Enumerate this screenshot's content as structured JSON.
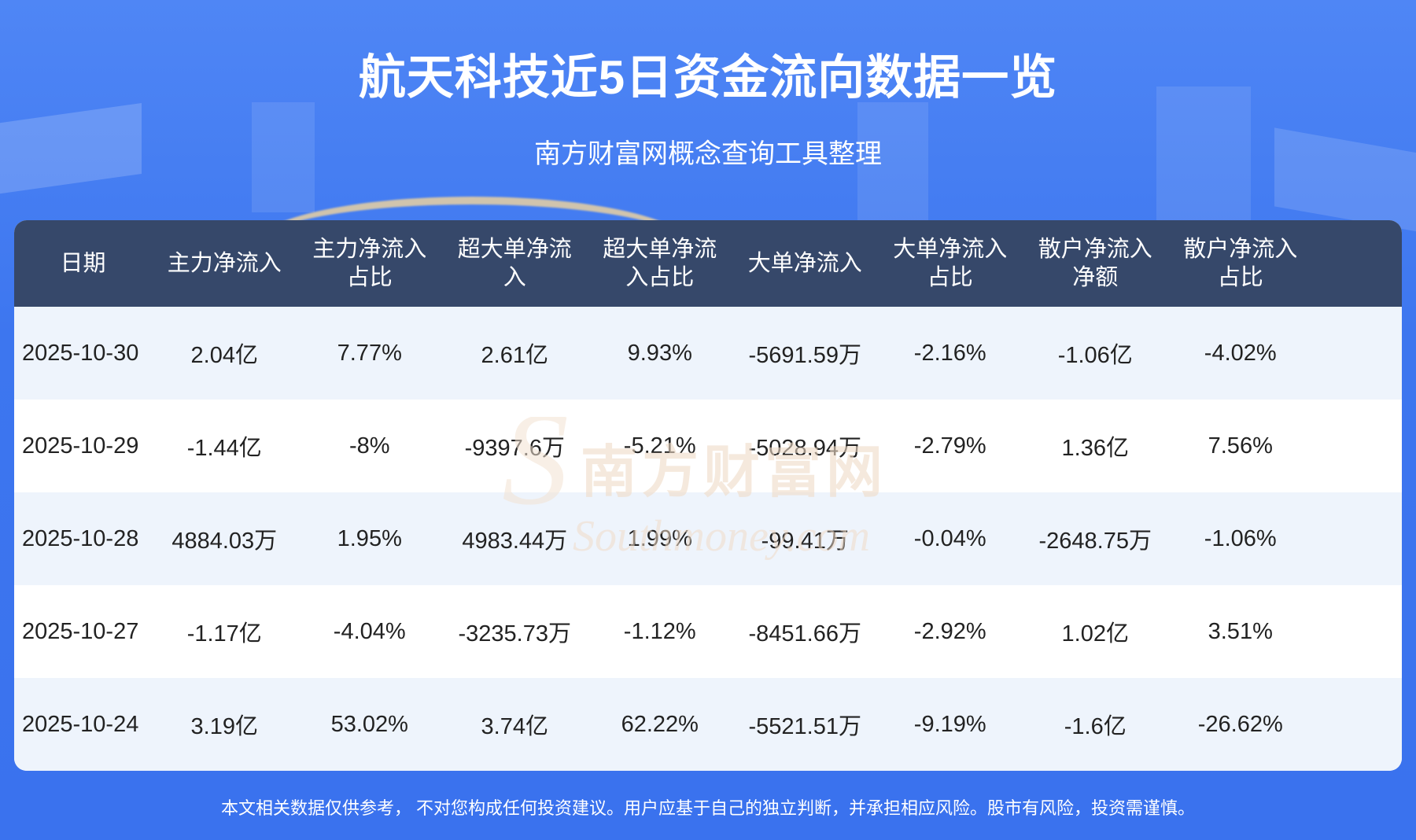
{
  "header": {
    "title": "航天科技近5日资金流向数据一览",
    "subtitle": "南方财富网概念查询工具整理"
  },
  "table": {
    "columns": [
      "日期",
      "主力净流入",
      "主力净流入占比",
      "超大单净流入",
      "超大单净流入占比",
      "大单净流入",
      "大单净流入占比",
      "散户净流入净额",
      "散户净流入占比"
    ],
    "rows": [
      [
        "2025-10-30",
        "2.04亿",
        "7.77%",
        "2.61亿",
        "9.93%",
        "-5691.59万",
        "-2.16%",
        "-1.06亿",
        "-4.02%"
      ],
      [
        "2025-10-29",
        "-1.44亿",
        "-8%",
        "-9397.6万",
        "-5.21%",
        "-5028.94万",
        "-2.79%",
        "1.36亿",
        "7.56%"
      ],
      [
        "2025-10-28",
        "4884.03万",
        "1.95%",
        "4983.44万",
        "1.99%",
        "-99.41万",
        "-0.04%",
        "-2648.75万",
        "-1.06%"
      ],
      [
        "2025-10-27",
        "-1.17亿",
        "-4.04%",
        "-3235.73万",
        "-1.12%",
        "-8451.66万",
        "-2.92%",
        "1.02亿",
        "3.51%"
      ],
      [
        "2025-10-24",
        "3.19亿",
        "53.02%",
        "3.74亿",
        "62.22%",
        "-5521.51万",
        "-9.19%",
        "-1.6亿",
        "-26.62%"
      ]
    ]
  },
  "watermark": {
    "cn": "南方财富网",
    "en": "Southmoney.com"
  },
  "footer": {
    "disclaimer": "本文相关数据仅供参考， 不对您构成任何投资建议。用户应基于自己的独立判断，并承担相应风险。股市有风险，投资需谨慎。"
  },
  "colors": {
    "background": "#3d76ef",
    "header_row": "#36486a",
    "row_alt": "#eef4fc",
    "watermark": "#f3e3d3"
  }
}
